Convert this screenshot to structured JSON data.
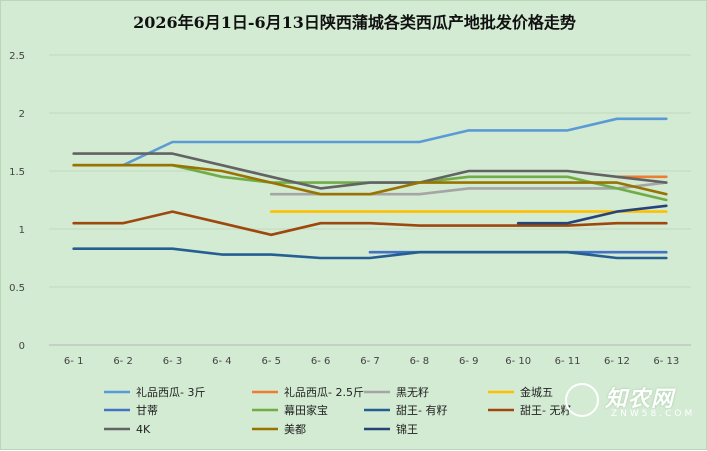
{
  "chart_data": {
    "type": "line",
    "title": "2026年6月1日-6月13日陕西蒲城各类西瓜产地批发价格走势",
    "categories": [
      "6- 1",
      "6- 2",
      "6- 3",
      "6- 4",
      "6- 5",
      "6- 6",
      "6- 7",
      "6- 8",
      "6- 9",
      "6- 10",
      "6- 11",
      "6- 12",
      "6- 13"
    ],
    "ylim": [
      0,
      2.5
    ],
    "yticks": [
      "0",
      "0.5",
      "1",
      "1.5",
      "2",
      "2.5"
    ],
    "grid": true,
    "legend_position": "bottom",
    "series": [
      {
        "name": "礼品西瓜- 3斤",
        "color": "#5b9bd5",
        "values": [
          null,
          1.55,
          1.75,
          1.75,
          1.75,
          1.75,
          1.75,
          1.75,
          1.85,
          1.85,
          1.85,
          1.95,
          1.95
        ]
      },
      {
        "name": "礼品西瓜- 2.5斤",
        "color": "#ed7d31",
        "values": [
          null,
          null,
          null,
          null,
          null,
          null,
          null,
          null,
          null,
          null,
          null,
          1.45,
          1.45
        ]
      },
      {
        "name": "黑无籽",
        "color": "#a5a5a5",
        "values": [
          null,
          null,
          null,
          null,
          1.3,
          1.3,
          1.3,
          1.3,
          1.35,
          1.35,
          1.35,
          1.35,
          1.4
        ]
      },
      {
        "name": "金城五",
        "color": "#ffc000",
        "values": [
          null,
          null,
          null,
          null,
          1.15,
          1.15,
          1.15,
          1.15,
          1.15,
          1.15,
          1.15,
          1.15,
          1.15
        ]
      },
      {
        "name": "甘蒂",
        "color": "#4472c4",
        "values": [
          null,
          null,
          null,
          null,
          null,
          null,
          0.8,
          0.8,
          0.8,
          0.8,
          0.8,
          0.8,
          0.8
        ]
      },
      {
        "name": "幕田家宝",
        "color": "#70ad47",
        "values": [
          1.55,
          1.55,
          1.55,
          1.45,
          1.4,
          1.4,
          1.4,
          1.4,
          1.45,
          1.45,
          1.45,
          1.35,
          1.25
        ]
      },
      {
        "name": "甜王- 有籽",
        "color": "#255e91",
        "values": [
          0.83,
          0.83,
          0.83,
          0.78,
          0.78,
          0.75,
          0.75,
          0.8,
          0.8,
          0.8,
          0.8,
          0.75,
          0.75
        ]
      },
      {
        "name": "甜王- 无籽",
        "color": "#9e480e",
        "values": [
          1.05,
          1.05,
          1.15,
          1.05,
          0.95,
          1.05,
          1.05,
          1.03,
          1.03,
          1.03,
          1.03,
          1.05,
          1.05
        ]
      },
      {
        "name": "4K",
        "color": "#636363",
        "values": [
          1.65,
          1.65,
          1.65,
          1.55,
          1.45,
          1.35,
          1.4,
          1.4,
          1.5,
          1.5,
          1.5,
          1.45,
          1.4
        ]
      },
      {
        "name": "美都",
        "color": "#997300",
        "values": [
          1.55,
          1.55,
          1.55,
          1.5,
          1.4,
          1.3,
          1.3,
          1.4,
          1.4,
          1.4,
          1.4,
          1.4,
          1.3
        ]
      },
      {
        "name": "锦王",
        "color": "#264478",
        "values": [
          null,
          null,
          null,
          null,
          null,
          null,
          null,
          null,
          null,
          1.05,
          1.05,
          1.15,
          1.2
        ]
      }
    ]
  }
}
